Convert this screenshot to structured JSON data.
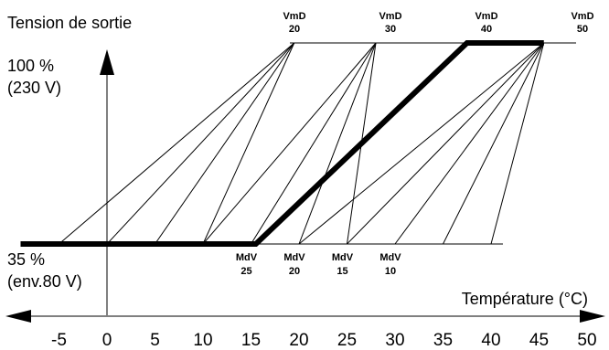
{
  "chart_data": {
    "type": "line",
    "title": "",
    "ylabel": "Tension de sortie",
    "xlabel": "Température (°C)",
    "x_ticks": [
      -5,
      0,
      5,
      10,
      15,
      20,
      25,
      30,
      35,
      40,
      45,
      50
    ],
    "x_tick_labels": [
      "-5",
      "0",
      "5",
      "10",
      "15",
      "20",
      "25",
      "30",
      "35",
      "40",
      "45",
      "50"
    ],
    "xlim": [
      -9,
      50
    ],
    "y_levels": {
      "high": {
        "percent": 100,
        "label_line1": "100 %",
        "label_line2": "(230 V)"
      },
      "low": {
        "percent": 35,
        "label_line1": "35 %",
        "label_line2": "(env.80 V)"
      }
    },
    "vmd": [
      {
        "label": "VmD",
        "value": "20",
        "x": 20
      },
      {
        "label": "VmD",
        "value": "30",
        "x": 30
      },
      {
        "label": "VmD",
        "value": "40",
        "x": 40
      },
      {
        "label": "VmD",
        "value": "50",
        "x": 50
      }
    ],
    "mdv": [
      {
        "label": "MdV",
        "value": "25",
        "x": 15
      },
      {
        "label": "MdV",
        "value": "20",
        "x": 20
      },
      {
        "label": "MdV",
        "value": "15",
        "x": 25
      },
      {
        "label": "MdV",
        "value": "10",
        "x": 30
      }
    ],
    "curves": [
      {
        "x": [
          -5,
          19.5
        ],
        "y": [
          35,
          100
        ]
      },
      {
        "x": [
          0,
          19.5
        ],
        "y": [
          35,
          100
        ]
      },
      {
        "x": [
          5,
          19.5
        ],
        "y": [
          35,
          100
        ]
      },
      {
        "x": [
          10,
          19.5
        ],
        "y": [
          35,
          100
        ]
      },
      {
        "x": [
          10,
          28
        ],
        "y": [
          35,
          100
        ]
      },
      {
        "x": [
          15,
          28
        ],
        "y": [
          35,
          100
        ]
      },
      {
        "x": [
          20,
          28
        ],
        "y": [
          35,
          100
        ]
      },
      {
        "x": [
          25,
          28
        ],
        "y": [
          35,
          100
        ]
      },
      {
        "x": [
          20,
          45.5
        ],
        "y": [
          35,
          100
        ]
      },
      {
        "x": [
          25,
          45.5
        ],
        "y": [
          35,
          100
        ]
      },
      {
        "x": [
          30,
          45.5
        ],
        "y": [
          35,
          100
        ]
      },
      {
        "x": [
          35,
          45.5
        ],
        "y": [
          35,
          100
        ]
      },
      {
        "x": [
          40,
          45.5
        ],
        "y": [
          35,
          100
        ]
      }
    ],
    "highlight": {
      "x": [
        -9,
        15.5,
        37.5,
        45.5
      ],
      "y": [
        35,
        35,
        100,
        100
      ]
    },
    "grid": false,
    "legend": "none"
  }
}
